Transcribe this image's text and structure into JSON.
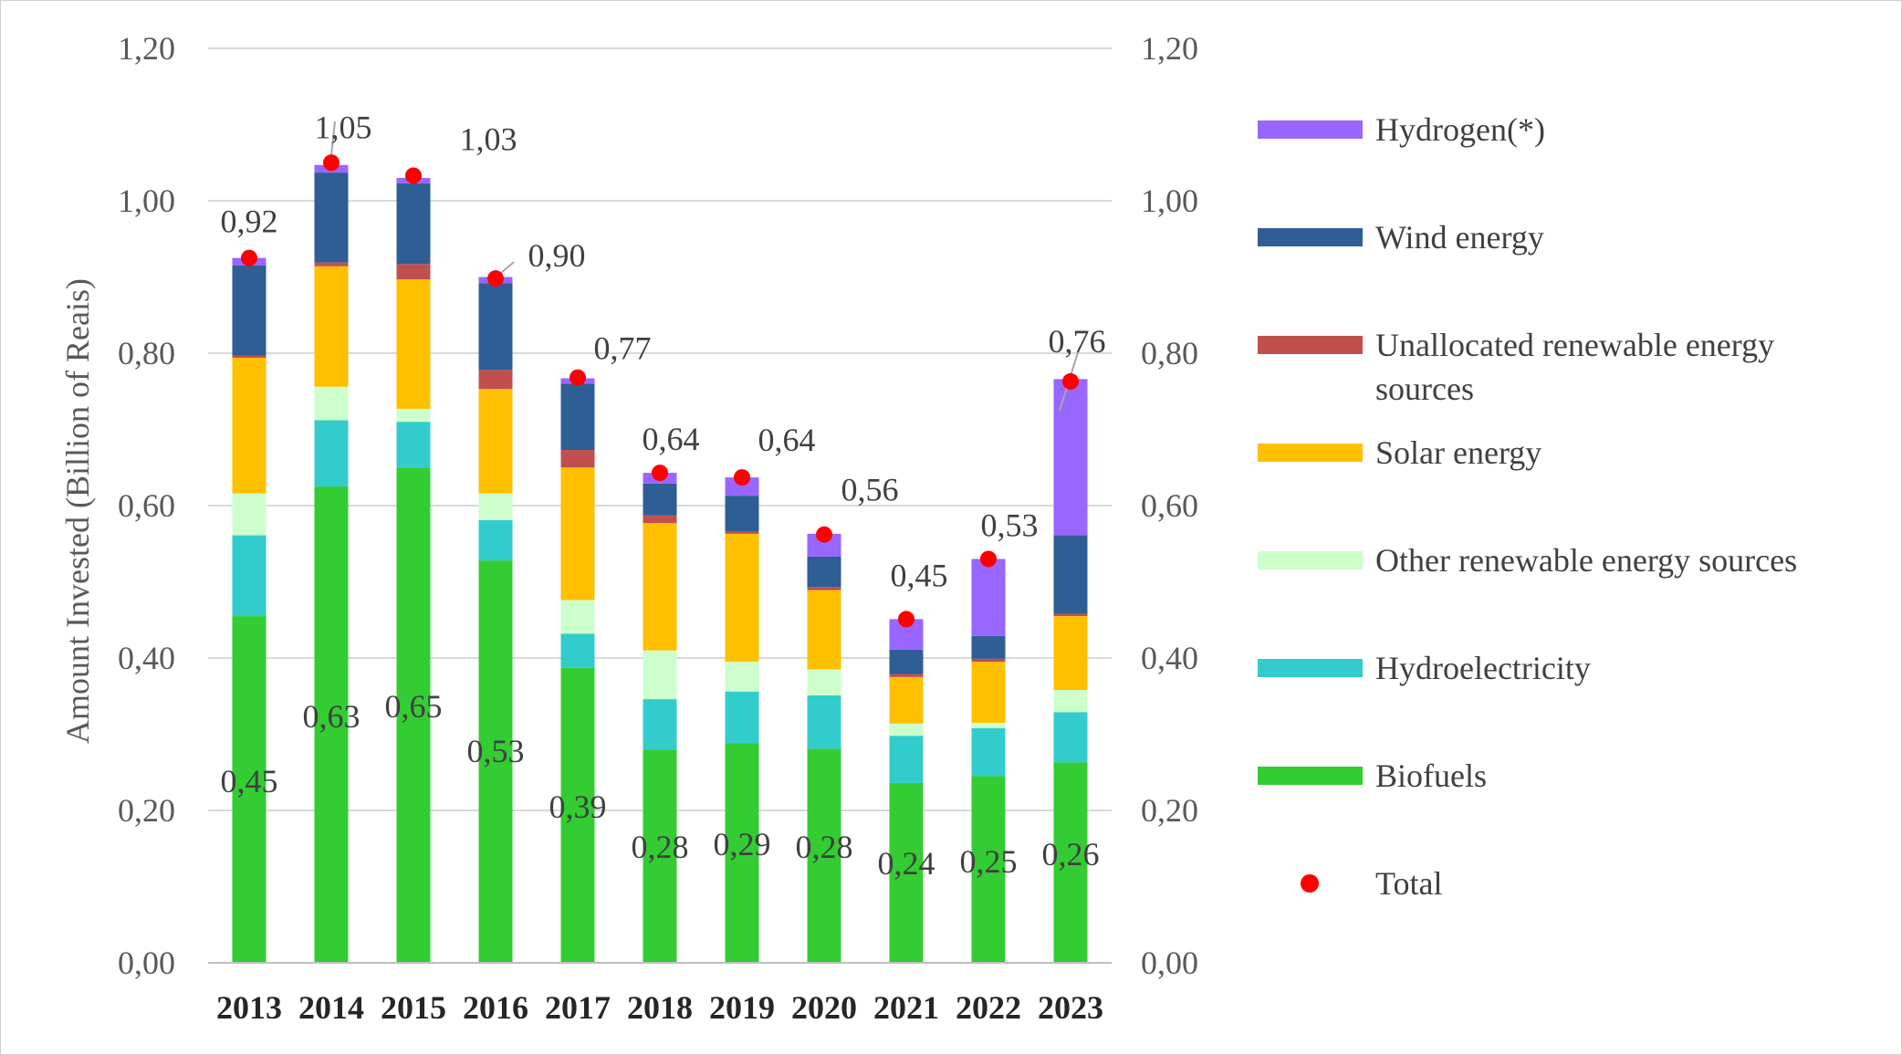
{
  "chart_data": {
    "type": "bar",
    "stacked": true,
    "title": "",
    "xlabel": "",
    "ylabel": "Amount Invested (Billion of Reais)",
    "ylim": [
      0,
      1.2
    ],
    "y_ticks": [
      "0,00",
      "0,20",
      "0,40",
      "0,60",
      "0,80",
      "1,00",
      "1,20"
    ],
    "y_tick_values": [
      0,
      0.2,
      0.4,
      0.6,
      0.8,
      1.0,
      1.2
    ],
    "secondary_y_axis": true,
    "grid": true,
    "legend_position": "right",
    "categories": [
      "2013",
      "2014",
      "2015",
      "2016",
      "2017",
      "2018",
      "2019",
      "2020",
      "2021",
      "2022",
      "2023"
    ],
    "series": [
      {
        "name": "Biofuels",
        "color": "#33cc33",
        "values": [
          0.455,
          0.625,
          0.65,
          0.528,
          0.387,
          0.28,
          0.288,
          0.281,
          0.236,
          0.245,
          0.263
        ]
      },
      {
        "name": "Hydroelectricity",
        "color": "#33cccc",
        "values": [
          0.106,
          0.087,
          0.06,
          0.053,
          0.045,
          0.066,
          0.068,
          0.07,
          0.062,
          0.063,
          0.066
        ]
      },
      {
        "name": "Other renewable energy sources",
        "color": "#ccffcc",
        "values": [
          0.055,
          0.044,
          0.017,
          0.035,
          0.044,
          0.064,
          0.039,
          0.034,
          0.016,
          0.007,
          0.029
        ]
      },
      {
        "name": "Solar energy",
        "color": "#ffc000",
        "values": [
          0.178,
          0.158,
          0.17,
          0.137,
          0.174,
          0.167,
          0.168,
          0.104,
          0.061,
          0.08,
          0.097
        ]
      },
      {
        "name": "Unallocated renewable energy sources",
        "color": "#c0504d",
        "values": [
          0.003,
          0.005,
          0.02,
          0.025,
          0.023,
          0.01,
          0.003,
          0.004,
          0.004,
          0.004,
          0.003
        ]
      },
      {
        "name": "Wind energy",
        "color": "#2e5e94",
        "values": [
          0.118,
          0.118,
          0.106,
          0.114,
          0.087,
          0.042,
          0.047,
          0.04,
          0.032,
          0.03,
          0.103
        ]
      },
      {
        "name": "Hydrogen(*)",
        "color": "#9966ff",
        "values": [
          0.01,
          0.01,
          0.007,
          0.008,
          0.007,
          0.014,
          0.024,
          0.03,
          0.04,
          0.101,
          0.205
        ]
      }
    ],
    "total": {
      "name": "Total",
      "color": "#ff0000",
      "values": [
        0.925,
        1.05,
        1.033,
        0.898,
        0.768,
        0.643,
        0.637,
        0.562,
        0.451,
        0.53,
        0.763
      ]
    },
    "total_labels": [
      "0,92",
      "1,05",
      "1,03",
      "0,90",
      "0,77",
      "0,64",
      "0,64",
      "0,56",
      "0,45",
      "0,53",
      "0,76"
    ],
    "biofuel_labels": [
      "0,45",
      "0,63",
      "0,65",
      "0,53",
      "0,39",
      "0,28",
      "0,29",
      "0,28",
      "0,24",
      "0,25",
      "0,26"
    ],
    "legend": [
      "Hydrogen(*)",
      "Wind energy",
      "Unallocated renewable energy sources",
      "Solar energy",
      "Other renewable energy sources",
      "Hydroelectricity",
      "Biofuels",
      "Total"
    ]
  }
}
